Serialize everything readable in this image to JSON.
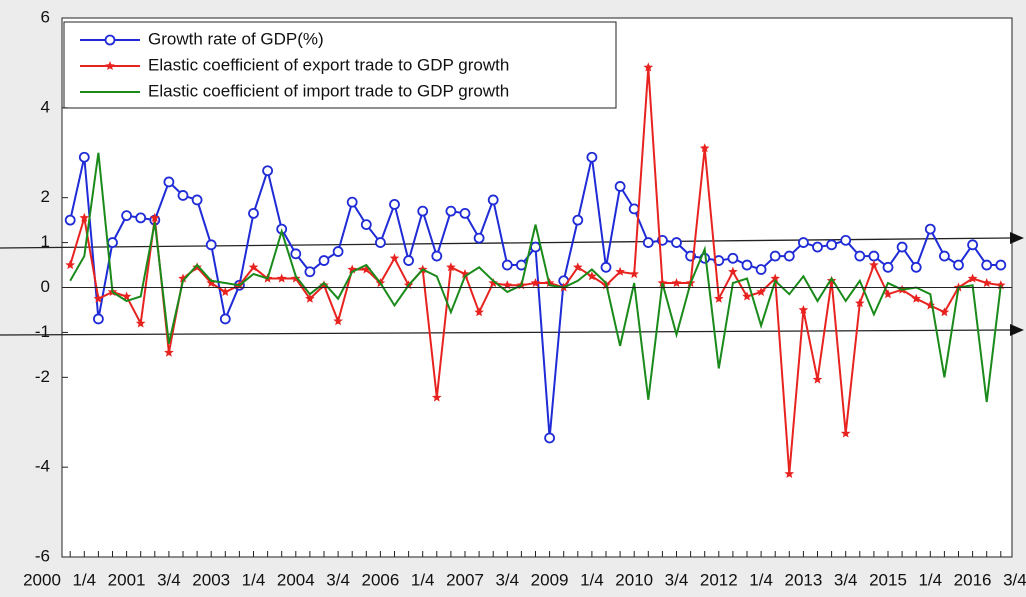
{
  "chart_data": {
    "type": "line",
    "categories": [
      "2000",
      null,
      null,
      "1/4",
      null,
      null,
      "2001",
      null,
      null,
      "3/4",
      null,
      null,
      "2003",
      null,
      null,
      "1/4",
      null,
      null,
      "2004",
      null,
      null,
      "3/4",
      null,
      null,
      "2006",
      null,
      null,
      "1/4",
      null,
      null,
      "2007",
      null,
      null,
      "3/4",
      null,
      null,
      "2009",
      null,
      null,
      "1/4",
      null,
      null,
      "2010",
      null,
      null,
      "3/4",
      null,
      null,
      "2012",
      null,
      null,
      "1/4",
      null,
      null,
      "2013",
      null,
      null,
      "3/4",
      null,
      null,
      "2015",
      null,
      null,
      "1/4",
      null,
      null,
      "2016",
      null,
      null,
      "3/4"
    ],
    "series": [
      {
        "name": "Growth rate of GDP(%)",
        "color": "#1f2bd6",
        "marker": "circle",
        "values": [
          null,
          null,
          1.5,
          2.9,
          -0.7,
          1.0,
          1.6,
          1.55,
          1.5,
          2.35,
          2.05,
          1.95,
          0.95,
          -0.7,
          0.05,
          1.65,
          2.6,
          1.3,
          0.75,
          0.35,
          0.6,
          0.8,
          1.9,
          1.4,
          1.0,
          1.85,
          0.6,
          1.7,
          0.7,
          1.7,
          1.65,
          1.1,
          1.95,
          0.5,
          0.5,
          0.9,
          -3.35,
          0.15,
          1.5,
          2.9,
          0.45,
          2.25,
          1.75,
          1.0,
          1.05,
          1.0,
          0.7,
          0.65,
          0.6,
          0.65,
          0.5,
          0.4,
          0.7,
          0.7,
          1.0,
          0.9,
          0.95,
          1.05,
          0.7,
          0.7,
          0.45,
          0.9,
          0.45,
          1.3,
          0.7,
          0.5,
          0.95,
          0.5,
          0.5,
          null
        ]
      },
      {
        "name": "Elastic coefficient of export trade to GDP growth",
        "color": "#e8231f",
        "marker": "star",
        "values": [
          null,
          null,
          0.5,
          1.55,
          -0.25,
          -0.1,
          -0.2,
          -0.8,
          1.55,
          -1.45,
          0.2,
          0.45,
          0.1,
          -0.1,
          0.05,
          0.45,
          0.2,
          0.2,
          0.2,
          -0.25,
          0.05,
          -0.75,
          0.4,
          0.4,
          0.1,
          0.65,
          0.05,
          0.4,
          -2.45,
          0.45,
          0.3,
          -0.55,
          0.1,
          0.05,
          0.05,
          0.1,
          0.1,
          0,
          0.45,
          0.25,
          0.05,
          0.35,
          0.3,
          4.9,
          0.1,
          0.1,
          0.1,
          3.1,
          -0.25,
          0.35,
          -0.2,
          -0.1,
          0.2,
          -4.15,
          -0.5,
          -2.05,
          0.15,
          -3.25,
          -0.35,
          0.5,
          -0.15,
          -0.05,
          -0.25,
          -0.4,
          -0.55,
          0,
          0.2,
          0.1,
          0.05,
          null
        ]
      },
      {
        "name": "Elastic coefficient of import trade to GDP growth",
        "color": "#1a8a1a",
        "marker": "none",
        "values": [
          null,
          null,
          0.15,
          0.7,
          3.0,
          -0.1,
          -0.3,
          -0.2,
          1.45,
          -1.25,
          0.15,
          0.5,
          0.15,
          0.1,
          0.05,
          0.3,
          0.2,
          1.25,
          0.25,
          -0.15,
          0.1,
          -0.25,
          0.35,
          0.5,
          0.1,
          -0.4,
          0.05,
          0.4,
          0.25,
          -0.55,
          0.25,
          0.45,
          0.15,
          -0.1,
          0.05,
          1.4,
          0.05,
          0,
          0.15,
          0.4,
          0.1,
          -1.3,
          0.1,
          -2.5,
          0.1,
          -1.05,
          0.1,
          0.85,
          -1.8,
          0.1,
          0.2,
          -0.85,
          0.15,
          -0.15,
          0.25,
          -0.3,
          0.2,
          -0.3,
          0.15,
          -0.6,
          0.1,
          -0.05,
          0,
          -0.15,
          -2.0,
          0,
          0.05,
          -2.55,
          0.05,
          null
        ]
      }
    ],
    "ylim": [
      -6,
      6
    ],
    "yticks": [
      6,
      4,
      2,
      1,
      0,
      -1,
      -2,
      -4,
      -6
    ],
    "legend": "upper left"
  }
}
